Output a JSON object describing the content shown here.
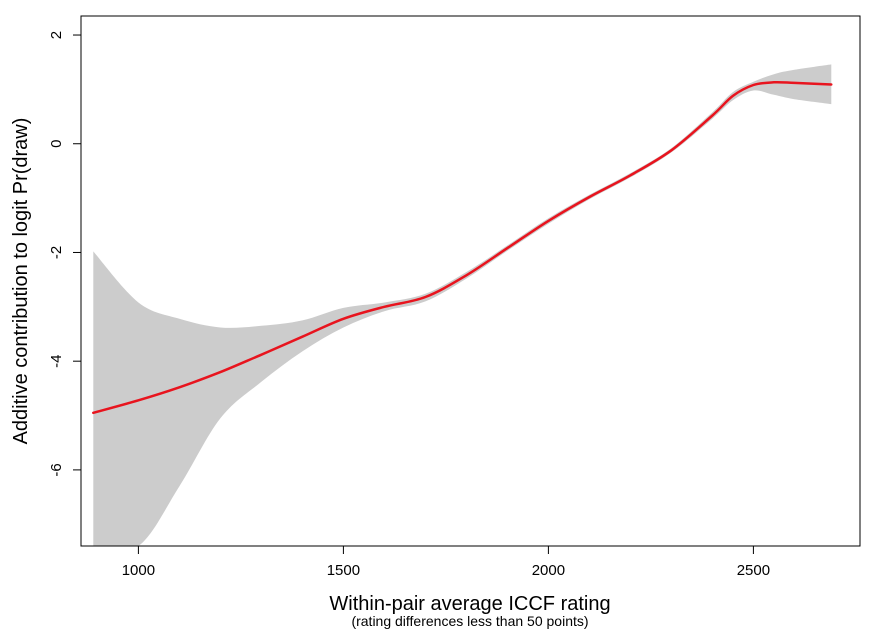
{
  "chart_data": {
    "type": "line",
    "title": "",
    "xlabel": "Within-pair average ICCF rating",
    "xlabel_sub": "(rating differences less than 50 points)",
    "ylabel": "Additive contribution to logit Pr(draw)",
    "xlim": [
      860,
      2760
    ],
    "ylim": [
      -7.4,
      2.35
    ],
    "x_ticks": [
      1000,
      1500,
      2000,
      2500
    ],
    "y_ticks": [
      2,
      0,
      -2,
      -4,
      -6
    ],
    "grid": false,
    "colors": {
      "line": "#e8141e",
      "band": "#cccccc",
      "axis": "#000000"
    },
    "series": [
      {
        "x": [
          890,
          1000,
          1100,
          1200,
          1300,
          1400,
          1500,
          1600,
          1700,
          1800,
          1900,
          2000,
          2100,
          2200,
          2300,
          2400,
          2450,
          2500,
          2550,
          2600,
          2690
        ],
        "y": [
          -4.95,
          -4.72,
          -4.48,
          -4.2,
          -3.88,
          -3.55,
          -3.22,
          -3.0,
          -2.82,
          -2.42,
          -1.92,
          -1.42,
          -0.98,
          -0.58,
          -0.12,
          0.52,
          0.88,
          1.08,
          1.13,
          1.12,
          1.09
        ],
        "lower": [
          -7.4,
          -7.4,
          -6.3,
          -5.05,
          -4.38,
          -3.82,
          -3.38,
          -3.08,
          -2.9,
          -2.48,
          -1.97,
          -1.47,
          -1.02,
          -0.62,
          -0.16,
          0.46,
          0.8,
          0.98,
          0.9,
          0.82,
          0.73
        ],
        "upper": [
          -1.98,
          -2.92,
          -3.22,
          -3.38,
          -3.35,
          -3.25,
          -3.02,
          -2.92,
          -2.76,
          -2.36,
          -1.87,
          -1.37,
          -0.94,
          -0.54,
          -0.08,
          0.58,
          0.95,
          1.14,
          1.28,
          1.36,
          1.46
        ]
      }
    ]
  }
}
